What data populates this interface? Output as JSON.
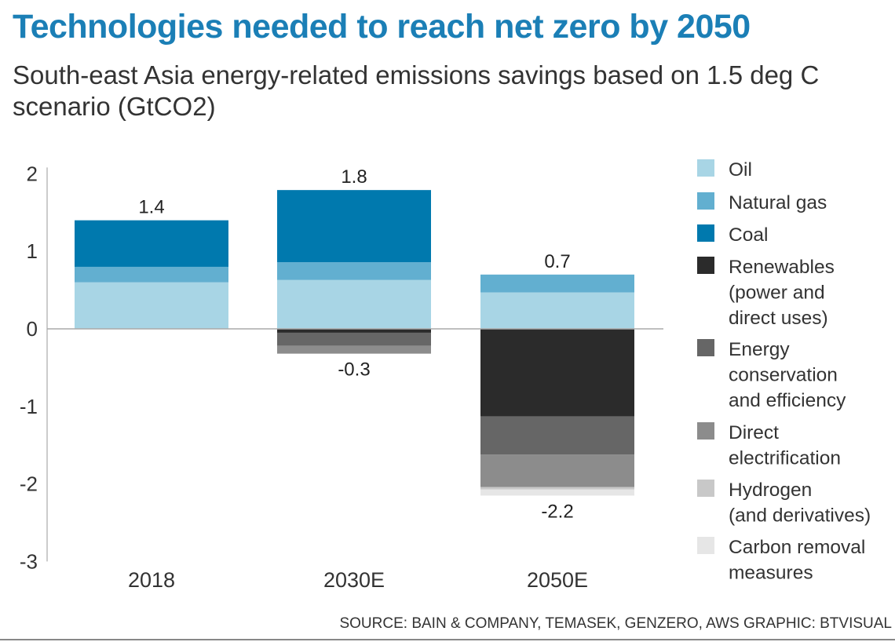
{
  "title": "Technologies needed to reach net zero by 2050",
  "subtitle": "South-east Asia energy-related emissions savings based on 1.5 deg C scenario (GtCO2)",
  "source": "SOURCE: BAIN & COMPANY, TEMASEK, GENZERO, AWS   GRAPHIC: BTVISUAL",
  "chart_data": {
    "type": "bar",
    "stacked": true,
    "title": "Technologies needed to reach net zero by 2050",
    "ylabel": "",
    "xlabel": "",
    "ylim": [
      -3,
      2
    ],
    "yticks": [
      2,
      1,
      0,
      -1,
      -2,
      -3
    ],
    "categories": [
      "2018",
      "2030E",
      "2050E"
    ],
    "legend_position": "right",
    "grid": false,
    "series": [
      {
        "name": "Oil",
        "color": "#a8d5e5",
        "values": [
          0.6,
          0.63,
          0.47
        ]
      },
      {
        "name": "Natural gas",
        "color": "#62afd0",
        "values": [
          0.2,
          0.23,
          0.23
        ]
      },
      {
        "name": "Coal",
        "color": "#0079ae",
        "values": [
          0.6,
          0.93,
          0
        ]
      },
      {
        "name": "Renewables (power and direct uses)",
        "color": "#2b2b2b",
        "values": [
          0,
          -0.05,
          -1.13
        ]
      },
      {
        "name": "Energy conservation and efficiency",
        "color": "#666666",
        "values": [
          0,
          -0.17,
          -0.49
        ]
      },
      {
        "name": "Direct electrification",
        "color": "#8c8c8c",
        "values": [
          0,
          -0.1,
          -0.42
        ]
      },
      {
        "name": "Hydrogen (and derivatives)",
        "color": "#c8c8c8",
        "values": [
          0,
          0,
          -0.03
        ]
      },
      {
        "name": "Carbon removal measures",
        "color": "#e6e6e6",
        "values": [
          0,
          0,
          -0.08
        ]
      }
    ],
    "legend_lines": [
      [
        "Oil"
      ],
      [
        "Natural gas"
      ],
      [
        "Coal"
      ],
      [
        "Renewables",
        "(power and",
        "direct uses)"
      ],
      [
        "Energy",
        "conservation",
        "and efficiency"
      ],
      [
        "Direct",
        "electrification"
      ],
      [
        "Hydrogen",
        "(and derivatives)"
      ],
      [
        "Carbon removal",
        "measures"
      ]
    ],
    "positive_totals": [
      "1.4",
      "1.8",
      "0.7"
    ],
    "negative_totals": [
      null,
      "-0.3",
      "-2.2"
    ]
  }
}
